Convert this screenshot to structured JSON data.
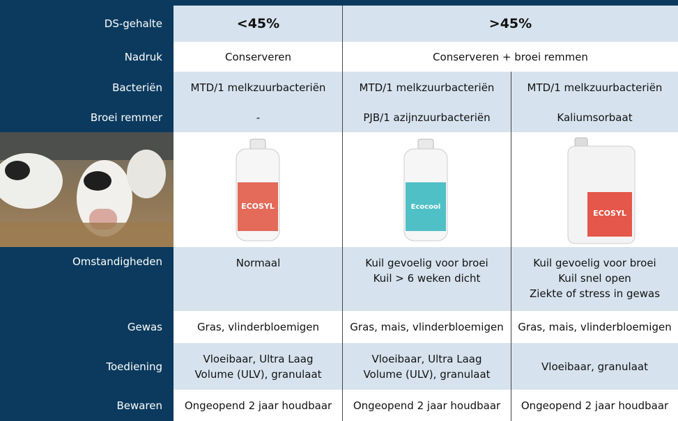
{
  "rows": [
    {
      "label": "DS-gehalte",
      "cells": [
        [
          "<45%"
        ],
        [
          ">45%"
        ]
      ]
    },
    {
      "label": "Nadruk",
      "cells": [
        [
          "Conserveren"
        ],
        [
          "Conserveren + broei remmen"
        ]
      ]
    },
    {
      "label": "Bacteriën",
      "cells": [
        [
          "MTD/1 melkzuurbacteriën"
        ],
        [
          "MTD/1 melkzuurbacteriën"
        ],
        [
          "MTD/1 melkzuurbacteriën"
        ]
      ]
    },
    {
      "label": "Broei remmer",
      "cells": [
        [
          "-"
        ],
        [
          "PJB/1 azijnzuurbacteriën"
        ],
        [
          "Kaliumsorbaat"
        ]
      ]
    },
    {
      "label": "Omstandigheden",
      "cells": [
        [
          "Normaal"
        ],
        [
          "Kuil gevoelig voor broei",
          "Kuil > 6 weken dicht"
        ],
        [
          "Kuil gevoelig voor broei",
          "Kuil snel open",
          "Ziekte of stress in gewas"
        ]
      ]
    },
    {
      "label": "Gewas",
      "cells": [
        [
          "Gras, vlinderbloemigen"
        ],
        [
          "Gras, mais, vlinderbloemigen"
        ],
        [
          "Gras, mais, vlinderbloemigen"
        ]
      ]
    },
    {
      "label": "Toediening",
      "cells": [
        [
          "Vloeibaar, Ultra Laag",
          "Volume (ULV), granulaat"
        ],
        [
          "Vloeibaar, Ultra Laag",
          "Volume (ULV), granulaat"
        ],
        [
          "Vloeibaar, granulaat"
        ]
      ]
    },
    {
      "label": "Bewaren",
      "cells": [
        [
          "Ongeopend 2 jaar houdbaar"
        ],
        [
          "Ongeopend 2 jaar houdbaar"
        ],
        [
          "Ongeopend 2 jaar houdbaar"
        ]
      ]
    }
  ],
  "products": [
    "ECOSYL",
    "Ecocool",
    "ECOSYL"
  ]
}
